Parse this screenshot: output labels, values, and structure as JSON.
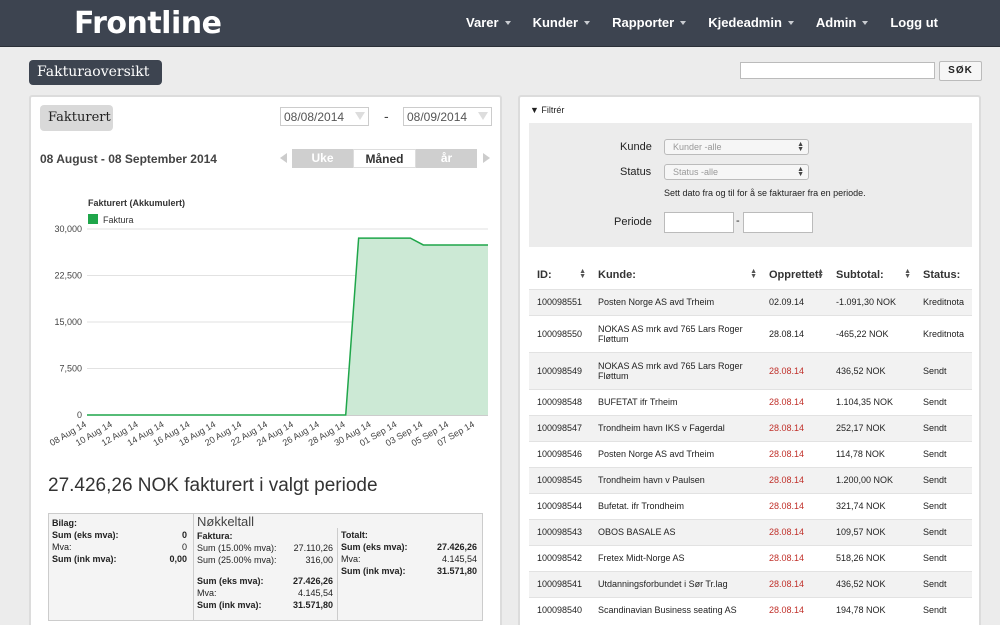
{
  "app": {
    "logo": "Frontline"
  },
  "nav": [
    {
      "label": "Varer",
      "caret": true
    },
    {
      "label": "Kunder",
      "caret": true
    },
    {
      "label": "Rapporter",
      "caret": true
    },
    {
      "label": "Kjedeadmin",
      "caret": true
    },
    {
      "label": "Admin",
      "caret": true
    },
    {
      "label": "Logg ut",
      "caret": false
    }
  ],
  "header": {
    "title": "Fakturaoversikt",
    "search_value": "",
    "search_button": "SØK"
  },
  "left": {
    "tab": "Fakturert",
    "date_from": "08/08/2014",
    "date_separator": "-",
    "date_to": "08/09/2014",
    "range_label": "08 August - 08 September 2014",
    "periods": [
      {
        "label": "Uke",
        "active": false
      },
      {
        "label": "Måned",
        "active": true
      },
      {
        "label": "år",
        "active": false
      }
    ],
    "total_text": "27.426,26 NOK fakturert i valgt periode"
  },
  "chart_data": {
    "type": "area",
    "title": "Fakturert (Akkumulert)",
    "series": [
      {
        "name": "Faktura",
        "color": "#1fa64a",
        "fill": "#cce9d5",
        "x": [
          "08 Aug 14",
          "09 Aug 14",
          "10 Aug 14",
          "11 Aug 14",
          "12 Aug 14",
          "13 Aug 14",
          "14 Aug 14",
          "15 Aug 14",
          "16 Aug 14",
          "17 Aug 14",
          "18 Aug 14",
          "19 Aug 14",
          "20 Aug 14",
          "21 Aug 14",
          "22 Aug 14",
          "23 Aug 14",
          "24 Aug 14",
          "25 Aug 14",
          "26 Aug 14",
          "27 Aug 14",
          "28 Aug 14",
          "29 Aug 14",
          "30 Aug 14",
          "31 Aug 14",
          "01 Sep 14",
          "02 Sep 14",
          "03 Sep 14",
          "04 Sep 14",
          "05 Sep 14",
          "06 Sep 14",
          "07 Sep 14",
          "08 Sep 14"
        ],
        "values": [
          0,
          0,
          0,
          0,
          0,
          0,
          0,
          0,
          0,
          0,
          0,
          0,
          0,
          0,
          0,
          0,
          0,
          0,
          0,
          0,
          0,
          28537,
          28537,
          28537,
          28537,
          28537,
          27426,
          27426,
          27426,
          27426,
          27426,
          27426
        ]
      }
    ],
    "xticks": [
      "08 Aug 14",
      "10 Aug 14",
      "12 Aug 14",
      "14 Aug 14",
      "16 Aug 14",
      "18 Aug 14",
      "20 Aug 14",
      "22 Aug 14",
      "24 Aug 14",
      "26 Aug 14",
      "28 Aug 14",
      "30 Aug 14",
      "01 Sep 14",
      "03 Sep 14",
      "05 Sep 14",
      "07 Sep 14"
    ],
    "yticks": [
      "0",
      "7,500",
      "15,000",
      "22,500",
      "30,000"
    ],
    "ylim": [
      0,
      30000
    ],
    "grid": true,
    "legend": "top-left"
  },
  "summary": {
    "bilag": {
      "title": "Bilag:",
      "rows": [
        {
          "label": "Sum (eks mva):",
          "value": "0",
          "bold": true
        },
        {
          "label": "Mva:",
          "value": "0",
          "bold": false
        },
        {
          "label": "Sum (ink mva):",
          "value": "0,00",
          "bold": true
        }
      ]
    },
    "nokkeltall": "Nøkkeltall",
    "faktura": {
      "title": "Faktura:",
      "rows": [
        {
          "label": "Sum (15.00% mva):",
          "value": "27.110,26",
          "bold": false
        },
        {
          "label": "Sum (25.00% mva):",
          "value": "316,00",
          "bold": false
        }
      ],
      "totals": [
        {
          "label": "Sum (eks mva):",
          "value": "27.426,26",
          "bold": true
        },
        {
          "label": "Mva:",
          "value": "4.145,54",
          "bold": false
        },
        {
          "label": "Sum (ink mva):",
          "value": "31.571,80",
          "bold": true
        }
      ]
    },
    "totalt": {
      "title": "Totalt:",
      "rows": [
        {
          "label": "Sum (eks mva):",
          "value": "27.426,26",
          "bold": true
        },
        {
          "label": "Mva:",
          "value": "4.145,54",
          "bold": false
        },
        {
          "label": "Sum (ink mva):",
          "value": "31.571,80",
          "bold": true
        }
      ]
    }
  },
  "filter": {
    "toggle_label": "▼ Filtrér",
    "kunde_label": "Kunde",
    "kunde_placeholder": "Kunder -alle",
    "status_label": "Status",
    "status_placeholder": "Status -alle",
    "note": "Sett dato fra og til for å se fakturaer fra en periode.",
    "periode_label": "Periode",
    "periode_separator": "-"
  },
  "table": {
    "columns": [
      "ID:",
      "Kunde:",
      "Opprettet:",
      "Subtotal:",
      "Status:"
    ],
    "rows": [
      {
        "id": "100098551",
        "kunde": "Posten Norge AS avd Trheim",
        "opprettet": "02.09.14",
        "subtotal": "-1.091,30 NOK",
        "status": "Kreditnota",
        "red": false,
        "tall": false
      },
      {
        "id": "100098550",
        "kunde": "NOKAS AS mrk avd 765 Lars Roger Fløttum",
        "opprettet": "28.08.14",
        "subtotal": "-465,22 NOK",
        "status": "Kreditnota",
        "red": false,
        "tall": true
      },
      {
        "id": "100098549",
        "kunde": "NOKAS AS mrk avd 765 Lars Roger Fløttum",
        "opprettet": "28.08.14",
        "subtotal": "436,52 NOK",
        "status": "Sendt",
        "red": true,
        "tall": true
      },
      {
        "id": "100098548",
        "kunde": "BUFETAT ifr Trheim",
        "opprettet": "28.08.14",
        "subtotal": "1.104,35 NOK",
        "status": "Sendt",
        "red": true,
        "tall": false
      },
      {
        "id": "100098547",
        "kunde": "Trondheim havn IKS v Fagerdal",
        "opprettet": "28.08.14",
        "subtotal": "252,17 NOK",
        "status": "Sendt",
        "red": true,
        "tall": false
      },
      {
        "id": "100098546",
        "kunde": "Posten Norge AS avd Trheim",
        "opprettet": "28.08.14",
        "subtotal": "114,78 NOK",
        "status": "Sendt",
        "red": true,
        "tall": false
      },
      {
        "id": "100098545",
        "kunde": "Trondheim havn v Paulsen",
        "opprettet": "28.08.14",
        "subtotal": "1.200,00 NOK",
        "status": "Sendt",
        "red": true,
        "tall": false
      },
      {
        "id": "100098544",
        "kunde": "Bufetat. ifr Trondheim",
        "opprettet": "28.08.14",
        "subtotal": "321,74 NOK",
        "status": "Sendt",
        "red": true,
        "tall": false
      },
      {
        "id": "100098543",
        "kunde": "OBOS BASALE AS",
        "opprettet": "28.08.14",
        "subtotal": "109,57 NOK",
        "status": "Sendt",
        "red": true,
        "tall": false
      },
      {
        "id": "100098542",
        "kunde": "Fretex Midt-Norge AS",
        "opprettet": "28.08.14",
        "subtotal": "518,26 NOK",
        "status": "Sendt",
        "red": true,
        "tall": false
      },
      {
        "id": "100098541",
        "kunde": "Utdanningsforbundet i Sør Tr.lag",
        "opprettet": "28.08.14",
        "subtotal": "436,52 NOK",
        "status": "Sendt",
        "red": true,
        "tall": false
      },
      {
        "id": "100098540",
        "kunde": "Scandinavian Business seating AS",
        "opprettet": "28.08.14",
        "subtotal": "194,78 NOK",
        "status": "Sendt",
        "red": true,
        "tall": false
      }
    ]
  }
}
